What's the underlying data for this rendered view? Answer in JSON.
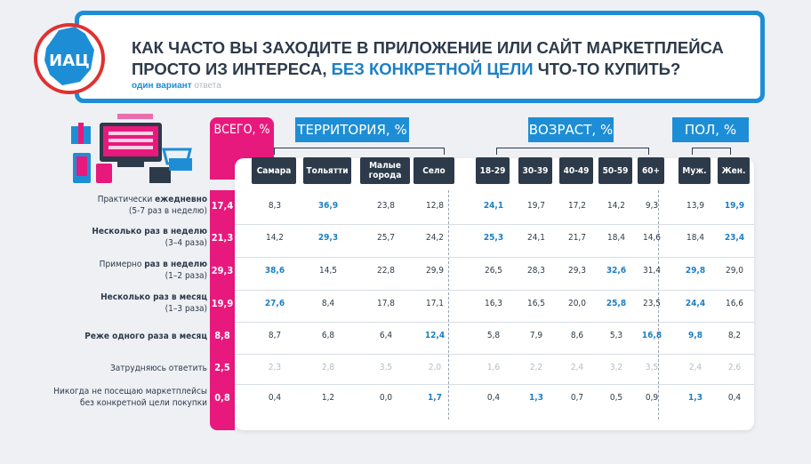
{
  "title_parts": [
    "Как часто вы заходите в приложение или сайт маркетплейса",
    "просто из интереса, ",
    "без конкретной цели",
    " что-то купить?"
  ],
  "subtitle_bold": "один вариант",
  "subtitle_gray": "ответа",
  "logo_text": "ИАЦ",
  "chart_data": {
    "type": "table",
    "group_headers": {
      "total": "Всего, %",
      "territory": "Территория, %",
      "age": "Возраст, %",
      "sex": "Пол, %"
    },
    "columns": [
      "Самара",
      "Тольятти",
      "Малые города",
      "Село",
      "18-29",
      "30-39",
      "40-49",
      "50-59",
      "60+",
      "Муж.",
      "Жен."
    ],
    "rows": [
      {
        "label_pre": "Практически ",
        "label_bold": "ежедневно",
        "label_sub": "(5-7 раз в неделю)",
        "total": "17,4",
        "values": [
          "8,3",
          "36,9",
          "23,8",
          "12,8",
          "24,1",
          "19,7",
          "17,2",
          "14,2",
          "9,3",
          "13,9",
          "19,9"
        ]
      },
      {
        "label_pre": "",
        "label_bold": "Несколько раз в неделю",
        "label_sub": "(3–4 раза)",
        "total": "21,3",
        "values": [
          "14,2",
          "29,3",
          "25,7",
          "24,2",
          "25,3",
          "24,1",
          "21,7",
          "18,4",
          "14,6",
          "18,4",
          "23,4"
        ]
      },
      {
        "label_pre": "Примерно ",
        "label_bold": "раз в неделю",
        "label_sub": "(1–2 раза)",
        "total": "29,3",
        "values": [
          "38,6",
          "14,5",
          "22,8",
          "29,9",
          "26,5",
          "28,3",
          "29,3",
          "32,6",
          "31,4",
          "29,8",
          "29,0"
        ]
      },
      {
        "label_pre": "",
        "label_bold": "Несколько раз в месяц",
        "label_sub": "(1–3 раза)",
        "total": "19,9",
        "values": [
          "27,6",
          "8,4",
          "17,8",
          "17,1",
          "16,3",
          "16,5",
          "20,0",
          "25,8",
          "23,5",
          "24,4",
          "16,6"
        ]
      },
      {
        "label_pre": "",
        "label_bold": "Реже одного раза в месяц",
        "label_sub": "",
        "total": "8,8",
        "values": [
          "8,7",
          "6,8",
          "6,4",
          "12,4",
          "5,8",
          "7,9",
          "8,6",
          "5,3",
          "16,8",
          "9,8",
          "8,2"
        ]
      },
      {
        "label_pre": "Затрудняюсь ответить",
        "label_bold": "",
        "label_sub": "",
        "total": "2,5",
        "values": [
          "2,3",
          "2,8",
          "3,5",
          "2,0",
          "1,6",
          "2,2",
          "2,4",
          "3,2",
          "3,5",
          "2,4",
          "2,6"
        ]
      },
      {
        "label_pre": "Никогда не посещаю маркетплейсы",
        "label_bold": "",
        "label_sub": "без конкретной цели покупки",
        "total": "0,8",
        "values": [
          "0,4",
          "1,2",
          "0,0",
          "1,7",
          "0,4",
          "1,3",
          "0,7",
          "0,5",
          "0,9",
          "1,3",
          "0,4"
        ]
      }
    ],
    "highlighted": [
      [
        0,
        1
      ],
      [
        0,
        4
      ],
      [
        0,
        10
      ],
      [
        1,
        1
      ],
      [
        1,
        4
      ],
      [
        1,
        10
      ],
      [
        2,
        0
      ],
      [
        2,
        7
      ],
      [
        2,
        9
      ],
      [
        3,
        0
      ],
      [
        3,
        7
      ],
      [
        3,
        9
      ],
      [
        4,
        3
      ],
      [
        4,
        8
      ],
      [
        4,
        9
      ],
      [
        6,
        3
      ],
      [
        6,
        5
      ],
      [
        6,
        9
      ]
    ],
    "muted_rows": [
      5
    ]
  },
  "colors": {
    "accent": "#1d8ed6",
    "highlight": "#1d7fc4",
    "total": "#e8197d",
    "dark": "#2d3a4a"
  }
}
